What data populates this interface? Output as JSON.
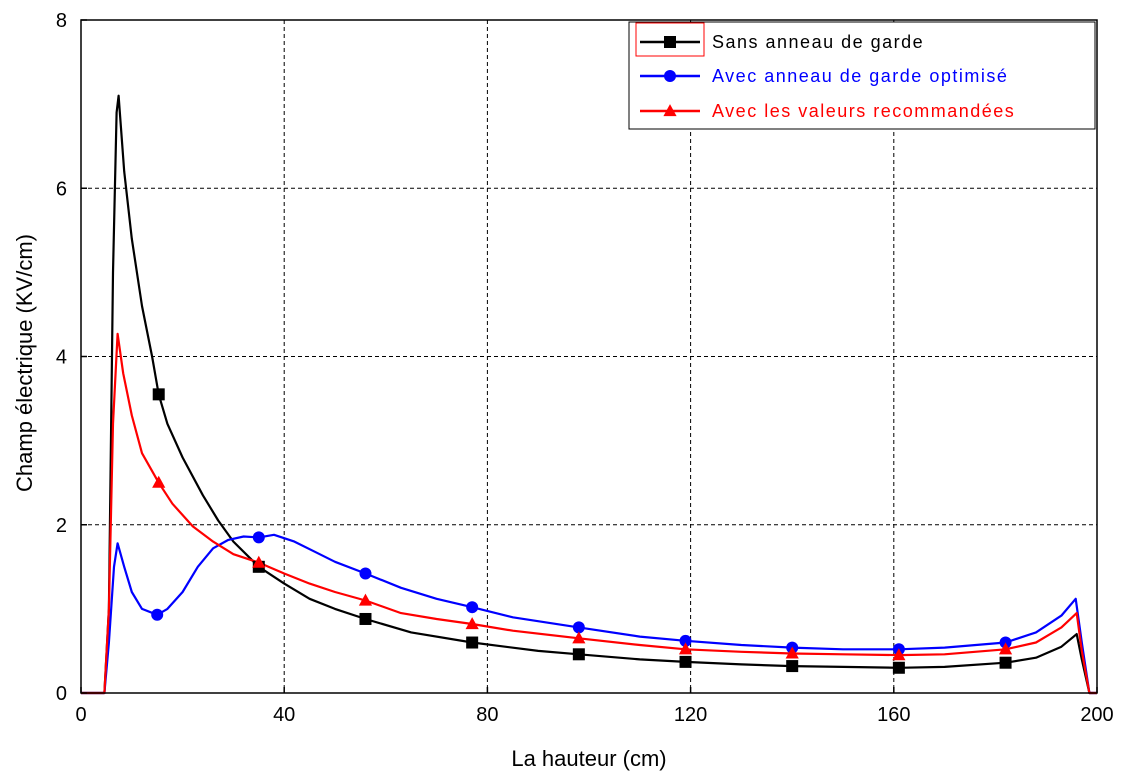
{
  "chart_data": {
    "type": "line",
    "xlabel": "La hauteur (cm)",
    "ylabel": "Champ électrique (KV/cm)",
    "xlim": [
      0,
      200
    ],
    "ylim": [
      0,
      8
    ],
    "xticks": [
      0,
      40,
      80,
      120,
      160,
      200
    ],
    "yticks": [
      0,
      2,
      4,
      6,
      8
    ],
    "x_tick_labels": [
      "0",
      "40",
      "80",
      "120",
      "160",
      "200"
    ],
    "y_tick_labels": [
      "0",
      "2",
      "4",
      "6",
      "8"
    ],
    "grid": true,
    "legend_position": "top-right",
    "series": [
      {
        "name": "Sans anneau de garde",
        "color": "#000000",
        "marker": "square",
        "text_color": "#000000",
        "points": [
          [
            0,
            0
          ],
          [
            4.6,
            0
          ],
          [
            5.5,
            1
          ],
          [
            6.3,
            5
          ],
          [
            7,
            6.9
          ],
          [
            7.4,
            7.1
          ],
          [
            8.5,
            6.2
          ],
          [
            10,
            5.4
          ],
          [
            12,
            4.6
          ],
          [
            14,
            4.0
          ],
          [
            15.3,
            3.55
          ],
          [
            17,
            3.2
          ],
          [
            20,
            2.8
          ],
          [
            24,
            2.35
          ],
          [
            27,
            2.05
          ],
          [
            30,
            1.8
          ],
          [
            33,
            1.62
          ],
          [
            35,
            1.5
          ],
          [
            40,
            1.3
          ],
          [
            45,
            1.12
          ],
          [
            50,
            1.0
          ],
          [
            56,
            0.88
          ],
          [
            65,
            0.72
          ],
          [
            77,
            0.6
          ],
          [
            90,
            0.5
          ],
          [
            98,
            0.46
          ],
          [
            110,
            0.4
          ],
          [
            119,
            0.37
          ],
          [
            130,
            0.34
          ],
          [
            140,
            0.32
          ],
          [
            150,
            0.31
          ],
          [
            161,
            0.3
          ],
          [
            170,
            0.31
          ],
          [
            182,
            0.36
          ],
          [
            188,
            0.42
          ],
          [
            193,
            0.55
          ],
          [
            196,
            0.7
          ],
          [
            197,
            0.4
          ],
          [
            198.5,
            0
          ],
          [
            200,
            0
          ]
        ],
        "markers_x": [
          15.3,
          35,
          56,
          77,
          98,
          119,
          140,
          161,
          182
        ]
      },
      {
        "name": "Avec anneau de garde optimisé",
        "color": "#0000ff",
        "marker": "circle",
        "text_color": "#0000ff",
        "points": [
          [
            0,
            0
          ],
          [
            4.6,
            0
          ],
          [
            5.5,
            0.6
          ],
          [
            6.5,
            1.5
          ],
          [
            7.2,
            1.78
          ],
          [
            8.5,
            1.5
          ],
          [
            10,
            1.2
          ],
          [
            12,
            1.0
          ],
          [
            15,
            0.93
          ],
          [
            17,
            1.0
          ],
          [
            20,
            1.2
          ],
          [
            23,
            1.5
          ],
          [
            26,
            1.72
          ],
          [
            29,
            1.82
          ],
          [
            32,
            1.86
          ],
          [
            35,
            1.85
          ],
          [
            38,
            1.88
          ],
          [
            42,
            1.8
          ],
          [
            46,
            1.68
          ],
          [
            50,
            1.56
          ],
          [
            56,
            1.42
          ],
          [
            63,
            1.25
          ],
          [
            70,
            1.12
          ],
          [
            77,
            1.02
          ],
          [
            85,
            0.9
          ],
          [
            98,
            0.78
          ],
          [
            110,
            0.67
          ],
          [
            119,
            0.62
          ],
          [
            130,
            0.57
          ],
          [
            140,
            0.54
          ],
          [
            150,
            0.52
          ],
          [
            161,
            0.52
          ],
          [
            170,
            0.54
          ],
          [
            182,
            0.6
          ],
          [
            188,
            0.72
          ],
          [
            193,
            0.92
          ],
          [
            195.8,
            1.12
          ],
          [
            197,
            0.6
          ],
          [
            198.5,
            0
          ],
          [
            200,
            0
          ]
        ],
        "markers_x": [
          15,
          35,
          56,
          77,
          98,
          119,
          140,
          161,
          182
        ]
      },
      {
        "name": "Avec les valeurs recommandées",
        "color": "#ff0000",
        "marker": "triangle",
        "text_color": "#ff0000",
        "points": [
          [
            0,
            0
          ],
          [
            4.6,
            0
          ],
          [
            5.5,
            1
          ],
          [
            6.3,
            3.2
          ],
          [
            7.2,
            4.27
          ],
          [
            8.3,
            3.8
          ],
          [
            10,
            3.3
          ],
          [
            12,
            2.85
          ],
          [
            15.3,
            2.5
          ],
          [
            18,
            2.25
          ],
          [
            22,
            1.98
          ],
          [
            26,
            1.8
          ],
          [
            30,
            1.65
          ],
          [
            35,
            1.55
          ],
          [
            40,
            1.42
          ],
          [
            45,
            1.3
          ],
          [
            50,
            1.2
          ],
          [
            56,
            1.1
          ],
          [
            63,
            0.95
          ],
          [
            70,
            0.88
          ],
          [
            77,
            0.82
          ],
          [
            85,
            0.74
          ],
          [
            98,
            0.65
          ],
          [
            110,
            0.57
          ],
          [
            119,
            0.52
          ],
          [
            130,
            0.49
          ],
          [
            140,
            0.47
          ],
          [
            150,
            0.46
          ],
          [
            161,
            0.45
          ],
          [
            170,
            0.46
          ],
          [
            182,
            0.52
          ],
          [
            188,
            0.6
          ],
          [
            193,
            0.78
          ],
          [
            196,
            0.95
          ],
          [
            197,
            0.5
          ],
          [
            198.5,
            0
          ],
          [
            200,
            0
          ]
        ],
        "markers_x": [
          15.3,
          35,
          56,
          77,
          98,
          119,
          140,
          161,
          182
        ]
      }
    ]
  }
}
